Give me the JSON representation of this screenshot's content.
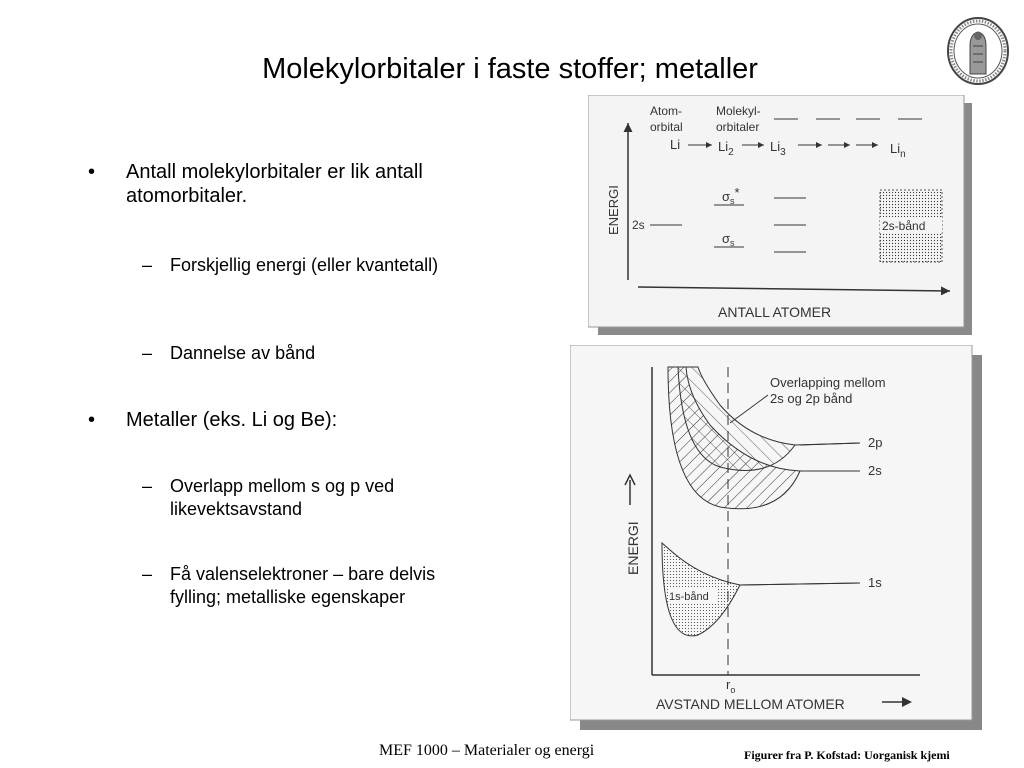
{
  "slide": {
    "title": "Molekylorbitaler i faste stoffer; metaller",
    "bullets": [
      {
        "text": "Antall molekylorbitaler  er lik antall atomorbitaler.",
        "sub": [
          "Forskjellig energi (eller kvantetall)",
          "Dannelse av bånd"
        ]
      },
      {
        "text": "Metaller (eks. Li og Be):",
        "sub": [
          "Overlapp mellom s og p ved likevektsavstand",
          "Få valenselektroner – bare delvis fylling; metalliske egenskaper"
        ]
      }
    ],
    "bullet_mark": "•",
    "sub_mark": "–",
    "footer": "MEF 1000 – Materialer og energi",
    "credit": "Figurer fra P. Kofstad: Uorganisk kjemi"
  },
  "figure1": {
    "col_atom": [
      "Atom-",
      "orbital"
    ],
    "col_mol": [
      "Molekyl-",
      "orbitaler"
    ],
    "li": "Li",
    "li2": "Li",
    "li2_sub": "2",
    "li3": "Li",
    "li3_sub": "3",
    "lin": "Li",
    "lin_sub": "n",
    "s2": "2s",
    "sigma_star": "σ",
    "sigma_star_sub": "s",
    "sigma_star_sup": "*",
    "sigma": "σ",
    "sigma_sub": "s",
    "band": "2s-bånd",
    "yaxis": "ENERGI",
    "xaxis": "ANTALL  ATOMER"
  },
  "figure2": {
    "note_line1": "Overlapping mellom",
    "note_line2": "2s og 2p bånd",
    "p2": "2p",
    "s2": "2s",
    "s1": "1s",
    "band1s": "1s-bånd",
    "yaxis": "ENERGI",
    "r0": "r",
    "r0_sub": "o",
    "xaxis": "AVSTAND MELLOM ATOMER"
  }
}
